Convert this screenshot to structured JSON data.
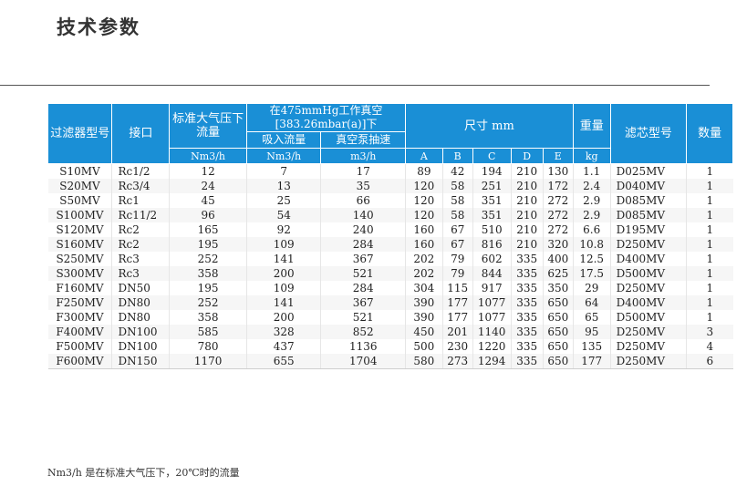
{
  "title": "技术参数",
  "headers": {
    "model": "过滤器型号",
    "port": "接口",
    "std_flow": "标准大气压下流量",
    "vacuum_group": "在475mmHg工作真空[383.26mbar(a)]下",
    "suction_flow": "吸入流量",
    "pump_speed": "真空泵抽速",
    "dimensions": "尺寸 mm",
    "weight": "重量",
    "element_model": "滤芯型号",
    "quantity": "数量"
  },
  "units": {
    "std_flow": "Nm3/h",
    "suction_flow": "Nm3/h",
    "pump_speed": "m3/h",
    "dim_a": "A",
    "dim_b": "B",
    "dim_c": "C",
    "dim_d": "D",
    "dim_e": "E",
    "weight": "kg"
  },
  "rows": [
    [
      "S10MV",
      "Rc1/2",
      "12",
      "7",
      "17",
      "89",
      "42",
      "194",
      "210",
      "130",
      "1.1",
      "D025MV",
      "1"
    ],
    [
      "S20MV",
      "Rc3/4",
      "24",
      "13",
      "35",
      "120",
      "58",
      "251",
      "210",
      "172",
      "2.4",
      "D040MV",
      "1"
    ],
    [
      "S50MV",
      "Rc1",
      "45",
      "25",
      "66",
      "120",
      "58",
      "351",
      "210",
      "272",
      "2.9",
      "D085MV",
      "1"
    ],
    [
      "S100MV",
      "Rc11/2",
      "96",
      "54",
      "140",
      "120",
      "58",
      "351",
      "210",
      "272",
      "2.9",
      "D085MV",
      "1"
    ],
    [
      "S120MV",
      "Rc2",
      "165",
      "92",
      "240",
      "160",
      "67",
      "510",
      "210",
      "272",
      "6.6",
      "D195MV",
      "1"
    ],
    [
      "S160MV",
      "Rc2",
      "195",
      "109",
      "284",
      "160",
      "67",
      "816",
      "210",
      "320",
      "10.8",
      "D250MV",
      "1"
    ],
    [
      "S250MV",
      "Rc3",
      "252",
      "141",
      "367",
      "202",
      "79",
      "602",
      "335",
      "400",
      "12.5",
      "D400MV",
      "1"
    ],
    [
      "S300MV",
      "Rc3",
      "358",
      "200",
      "521",
      "202",
      "79",
      "844",
      "335",
      "625",
      "17.5",
      "D500MV",
      "1"
    ],
    [
      "F160MV",
      "DN50",
      "195",
      "109",
      "284",
      "304",
      "115",
      "917",
      "335",
      "350",
      "29",
      "D250MV",
      "1"
    ],
    [
      "F250MV",
      "DN80",
      "252",
      "141",
      "367",
      "390",
      "177",
      "1077",
      "335",
      "650",
      "64",
      "D400MV",
      "1"
    ],
    [
      "F300MV",
      "DN80",
      "358",
      "200",
      "521",
      "390",
      "177",
      "1077",
      "335",
      "650",
      "65",
      "D500MV",
      "1"
    ],
    [
      "F400MV",
      "DN100",
      "585",
      "328",
      "852",
      "450",
      "201",
      "1140",
      "335",
      "650",
      "95",
      "D250MV",
      "3"
    ],
    [
      "F500MV",
      "DN100",
      "780",
      "437",
      "1136",
      "500",
      "230",
      "1220",
      "335",
      "650",
      "135",
      "D250MV",
      "4"
    ],
    [
      "F600MV",
      "DN150",
      "1170",
      "655",
      "1704",
      "580",
      "273",
      "1294",
      "335",
      "650",
      "177",
      "D250MV",
      "6"
    ]
  ],
  "footnote": "Nm3/h 是在标准大气压下，20℃时的流量"
}
